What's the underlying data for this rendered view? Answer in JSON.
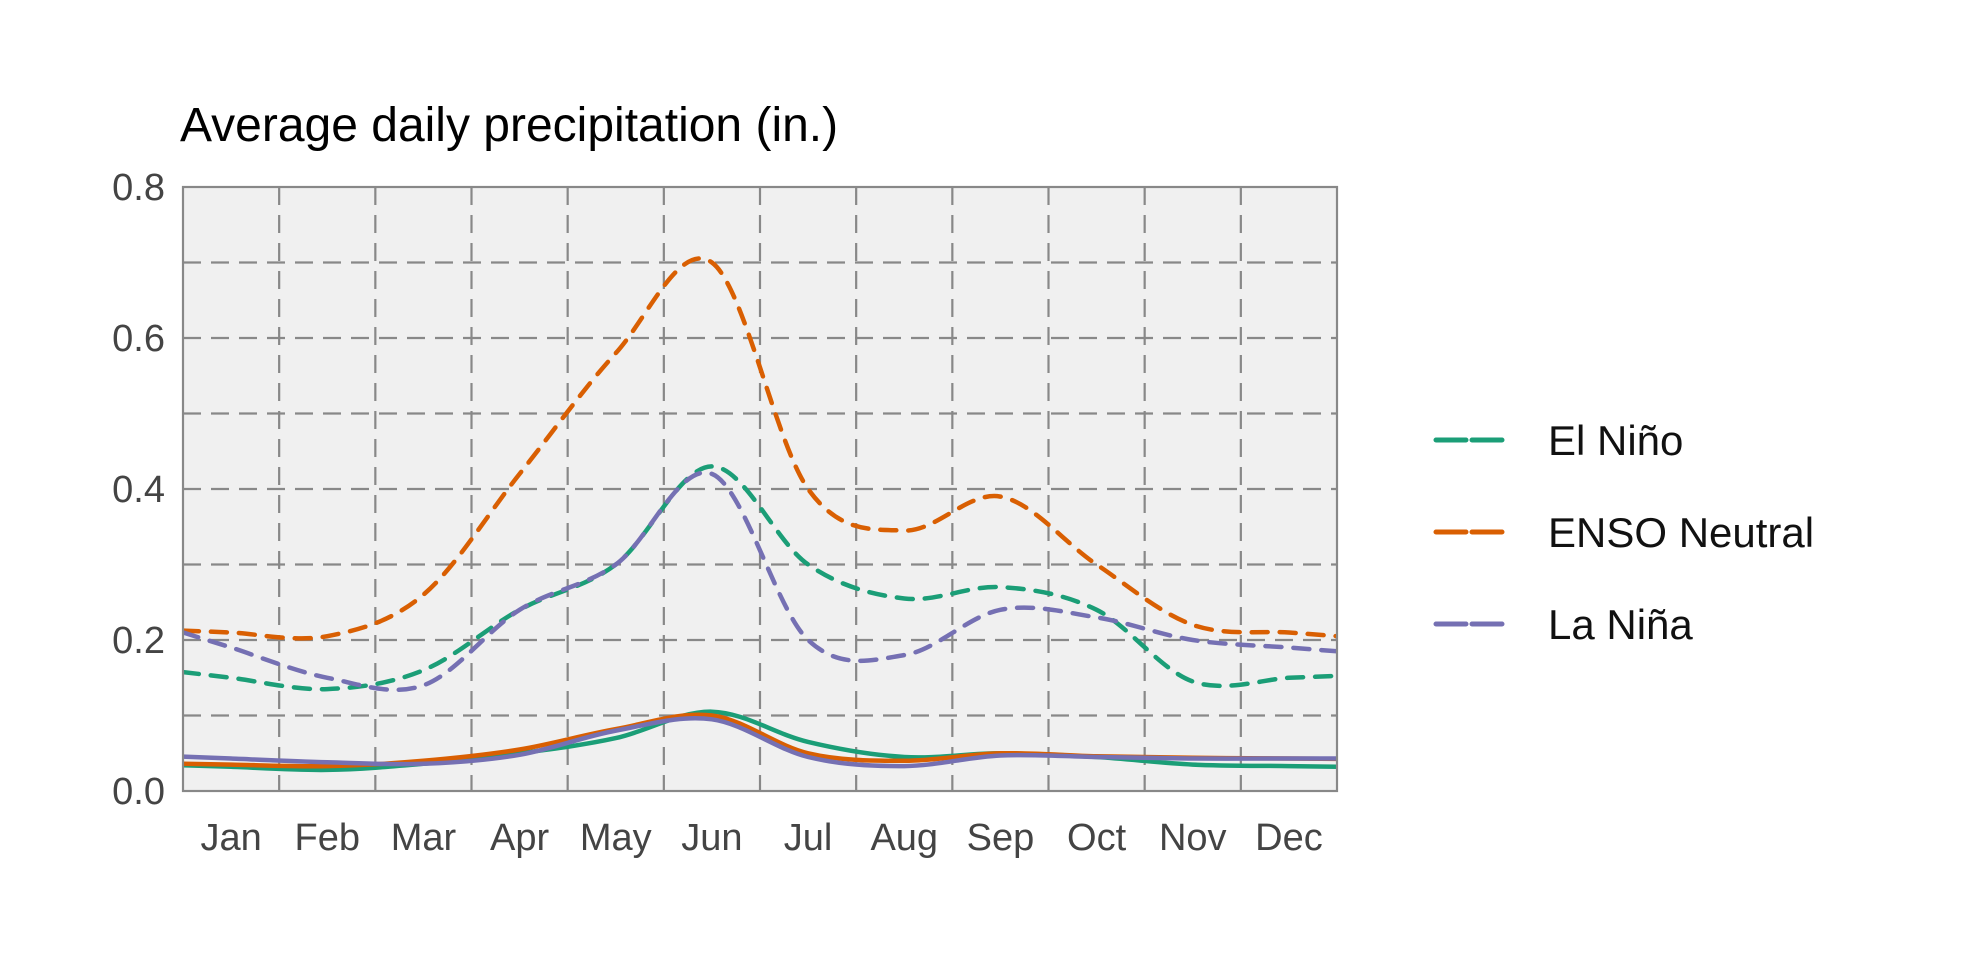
{
  "chart_data": {
    "type": "line",
    "title": "Average daily precipitation (in.)",
    "xlabel": "",
    "ylabel": "",
    "categories": [
      "Jan",
      "Feb",
      "Mar",
      "Apr",
      "May",
      "Jun",
      "Jul",
      "Aug",
      "Sep",
      "Oct",
      "Nov",
      "Dec"
    ],
    "ylim": [
      0.0,
      0.8
    ],
    "yticks": [
      0.0,
      0.2,
      0.4,
      0.6,
      0.8
    ],
    "yticks_minor": [
      0.1,
      0.3,
      0.5,
      0.7
    ],
    "grid": true,
    "legend": "right",
    "series": [
      {
        "name": "El Niño",
        "color": "#1b9e77",
        "style": "dashed",
        "values": [
          0.15,
          0.135,
          0.16,
          0.24,
          0.3,
          0.43,
          0.3,
          0.255,
          0.27,
          0.24,
          0.145,
          0.15
        ]
      },
      {
        "name": "ENSO Neutral",
        "color": "#d95f02",
        "style": "dashed",
        "values": [
          0.21,
          0.205,
          0.26,
          0.42,
          0.58,
          0.7,
          0.4,
          0.345,
          0.39,
          0.3,
          0.22,
          0.21
        ]
      },
      {
        "name": "La Niña",
        "color": "#7570b3",
        "style": "dashed",
        "values": [
          0.19,
          0.15,
          0.14,
          0.24,
          0.3,
          0.42,
          0.2,
          0.18,
          0.24,
          0.23,
          0.2,
          0.19
        ]
      },
      {
        "name": "El Niño",
        "color": "#1b9e77",
        "style": "solid",
        "values": [
          0.032,
          0.028,
          0.036,
          0.05,
          0.07,
          0.105,
          0.065,
          0.045,
          0.05,
          0.045,
          0.035,
          0.033
        ]
      },
      {
        "name": "ENSO Neutral",
        "color": "#d95f02",
        "style": "solid",
        "values": [
          0.035,
          0.033,
          0.04,
          0.055,
          0.082,
          0.1,
          0.05,
          0.04,
          0.05,
          0.046,
          0.044,
          0.043
        ]
      },
      {
        "name": "La Niña",
        "color": "#7570b3",
        "style": "solid",
        "values": [
          0.043,
          0.038,
          0.036,
          0.048,
          0.08,
          0.095,
          0.045,
          0.033,
          0.047,
          0.045,
          0.043,
          0.043
        ]
      }
    ]
  }
}
